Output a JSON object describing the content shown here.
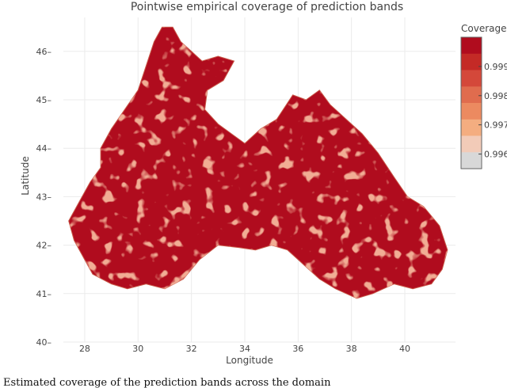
{
  "chart_data": {
    "type": "heatmap",
    "title": "Pointwise empirical coverage of prediction bands",
    "xlabel": "Longitude",
    "ylabel": "Latitude",
    "xlim": [
      27.2,
      41.9
    ],
    "ylim": [
      40,
      46.7
    ],
    "x_ticks": [
      "28",
      "30",
      "32",
      "34",
      "36",
      "38",
      "40"
    ],
    "x_tick_values": [
      28,
      30,
      32,
      34,
      36,
      38,
      40
    ],
    "y_ticks": [
      "40",
      "41",
      "42",
      "43",
      "44",
      "45",
      "46"
    ],
    "y_tick_values": [
      40,
      41,
      42,
      43,
      44,
      45,
      46
    ],
    "grid": true,
    "legend_position": "right",
    "colorbar": {
      "title": "Coverage",
      "tick_labels": [
        "0.999",
        "0.998",
        "0.997",
        "0.996"
      ],
      "tick_values": [
        0.999,
        0.998,
        0.997,
        0.996
      ],
      "range": [
        0.9955,
        1.0
      ],
      "colors": [
        "#b00c1e",
        "#c42a26",
        "#d4483a",
        "#e06c4e",
        "#ec8a60",
        "#f4ad80",
        "#f2cbb8",
        "#d8d8d8"
      ]
    },
    "region_outline": [
      [
        27.4,
        42.5
      ],
      [
        27.8,
        42.9
      ],
      [
        28.2,
        43.3
      ],
      [
        28.6,
        43.6
      ],
      [
        28.6,
        44.0
      ],
      [
        29.0,
        44.4
      ],
      [
        29.5,
        44.8
      ],
      [
        30.0,
        45.2
      ],
      [
        30.3,
        45.7
      ],
      [
        30.6,
        46.2
      ],
      [
        30.9,
        46.5
      ],
      [
        31.3,
        46.5
      ],
      [
        31.6,
        46.2
      ],
      [
        32.0,
        46.0
      ],
      [
        32.4,
        45.8
      ],
      [
        33.0,
        45.9
      ],
      [
        33.6,
        45.8
      ],
      [
        33.2,
        45.4
      ],
      [
        32.6,
        45.2
      ],
      [
        32.5,
        44.8
      ],
      [
        33.0,
        44.5
      ],
      [
        33.5,
        44.3
      ],
      [
        34.0,
        44.1
      ],
      [
        34.6,
        44.4
      ],
      [
        35.2,
        44.6
      ],
      [
        35.8,
        45.1
      ],
      [
        36.3,
        45.0
      ],
      [
        36.8,
        45.2
      ],
      [
        37.2,
        44.9
      ],
      [
        37.8,
        44.6
      ],
      [
        38.4,
        44.3
      ],
      [
        39.0,
        43.9
      ],
      [
        39.6,
        43.4
      ],
      [
        40.1,
        43.0
      ],
      [
        40.7,
        42.8
      ],
      [
        41.3,
        42.4
      ],
      [
        41.6,
        41.9
      ],
      [
        41.4,
        41.5
      ],
      [
        41.0,
        41.2
      ],
      [
        40.3,
        41.1
      ],
      [
        39.6,
        41.2
      ],
      [
        38.8,
        41.0
      ],
      [
        38.2,
        40.9
      ],
      [
        37.4,
        41.1
      ],
      [
        36.8,
        41.3
      ],
      [
        36.2,
        41.6
      ],
      [
        35.6,
        41.9
      ],
      [
        35.0,
        42.0
      ],
      [
        34.4,
        41.9
      ],
      [
        33.8,
        41.95
      ],
      [
        33.0,
        42.0
      ],
      [
        32.3,
        41.7
      ],
      [
        31.7,
        41.3
      ],
      [
        31.0,
        41.1
      ],
      [
        30.3,
        41.2
      ],
      [
        29.6,
        41.1
      ],
      [
        29.0,
        41.2
      ],
      [
        28.3,
        41.4
      ],
      [
        28.0,
        41.7
      ],
      [
        27.6,
        42.1
      ]
    ]
  },
  "caption": "Estimated coverage of the prediction bands across the domain"
}
